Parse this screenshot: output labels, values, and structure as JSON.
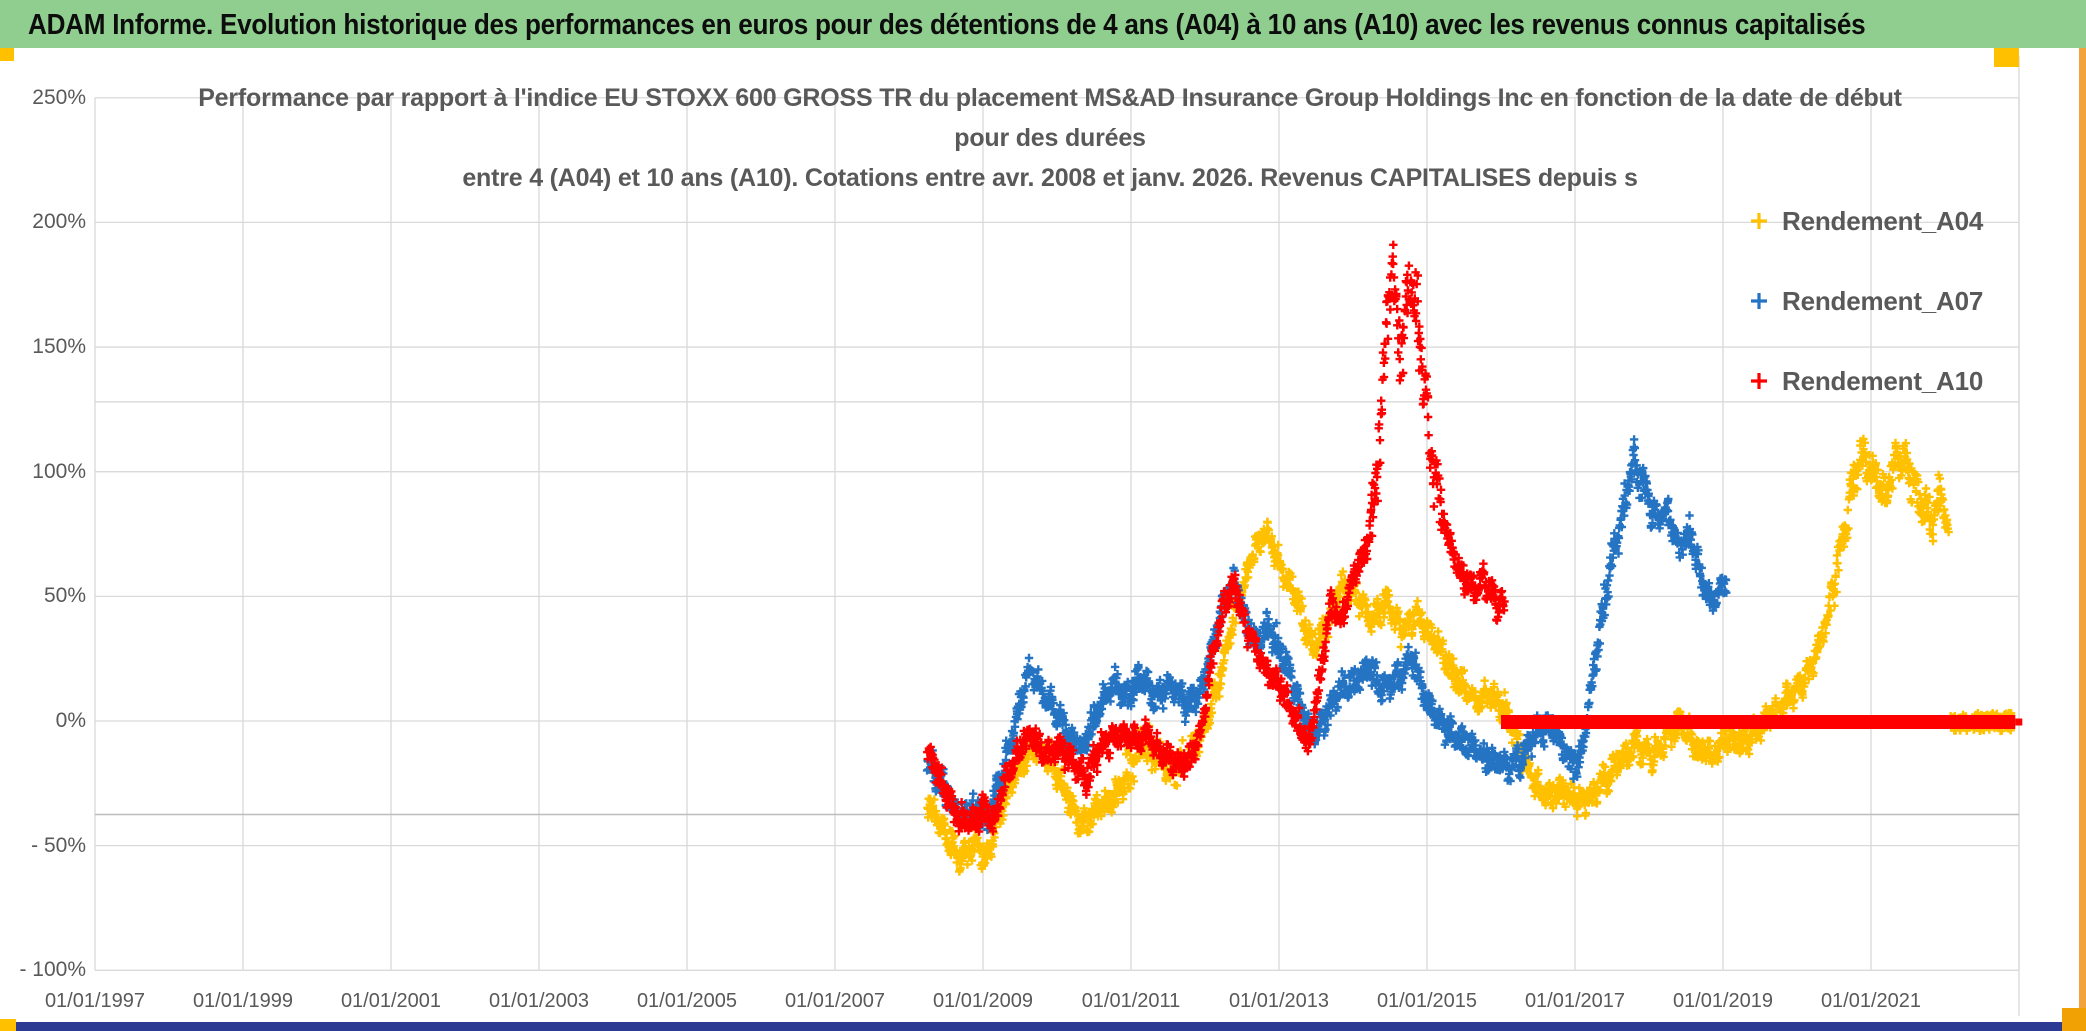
{
  "header": {
    "title": "ADAM Informe. Evolution historique des performances en euros pour des détentions de 4 ans (A04) à 10 ans (A10) avec les revenus connus capitalisés",
    "bg_color": "#8FCE8F",
    "text_color": "#0D0D0D"
  },
  "legend": {
    "position": "top-right",
    "items": [
      {
        "label": "Rendement_A04",
        "color": "#FFC000",
        "marker": "plus"
      },
      {
        "label": "Rendement_A07",
        "color": "#2574C4",
        "marker": "plus"
      },
      {
        "label": "Rendement_A10",
        "color": "#FF0000",
        "marker": "plus"
      }
    ]
  },
  "chart_data": {
    "type": "scatter",
    "title_lines": [
      "Performance par rapport à l'indice EU STOXX 600 GROSS TR  du placement MS&AD Insurance Group Holdings Inc en fonction de la date de début",
      "pour des durées",
      "entre 4 (A04) et 10 ans (A10). Cotations entre avr. 2008 et janv. 2026. Revenus CAPITALISES depuis s"
    ],
    "grid": true,
    "gridline_color": "#D9D9D9",
    "x_range_years": [
      1997,
      2023
    ],
    "ylim_pct": [
      -100,
      250
    ],
    "y_ticks": [
      "250%",
      "200%",
      "150%",
      "100%",
      "50%",
      "0%",
      "- 50%",
      "- 100%"
    ],
    "y_tick_values": [
      250,
      200,
      150,
      100,
      50,
      0,
      -50,
      -100
    ],
    "x_ticks": [
      "01/01/1997",
      "01/01/1999",
      "01/01/2001",
      "01/01/2003",
      "01/01/2005",
      "01/01/2007",
      "01/01/2009",
      "01/01/2011",
      "01/01/2013",
      "01/01/2015",
      "01/01/2017",
      "01/01/2019",
      "01/01/2021"
    ],
    "x_tick_years": [
      1997,
      1999,
      2001,
      2003,
      2005,
      2007,
      2009,
      2011,
      2013,
      2015,
      2017,
      2019,
      2021
    ],
    "extra_rules_pct": {
      "upper": 128,
      "lower": -37.5
    },
    "zero_flat_line": {
      "series": "Rendement_A10",
      "value_pct": 0,
      "from_year": 2016.0,
      "to_year": 2022.95,
      "color": "#FF0000",
      "thickness_px": 14
    },
    "series": [
      {
        "name": "Rendement_A04",
        "color": "#FFC000",
        "marker": "plus",
        "start_year": 2008.25,
        "end_year": 2022.05,
        "flat_zero": {
          "from": 2022.07,
          "to": 2022.9
        },
        "spread_base": 6,
        "spread_zones": [
          [
            2010.9,
            2011.7,
            9
          ],
          [
            2020.5,
            2021.95,
            9
          ]
        ],
        "clamp": [
          -61,
          121
        ],
        "points": [
          [
            2008.25,
            -32
          ],
          [
            2008.5,
            -45
          ],
          [
            2008.7,
            -55
          ],
          [
            2008.9,
            -50
          ],
          [
            2009.05,
            -55
          ],
          [
            2009.25,
            -35
          ],
          [
            2009.5,
            -18
          ],
          [
            2009.7,
            -10
          ],
          [
            2009.9,
            -14
          ],
          [
            2010.1,
            -28
          ],
          [
            2010.35,
            -42
          ],
          [
            2010.55,
            -35
          ],
          [
            2010.75,
            -32
          ],
          [
            2010.95,
            -22
          ],
          [
            2011.15,
            -8
          ],
          [
            2011.35,
            -15
          ],
          [
            2011.55,
            -20
          ],
          [
            2011.75,
            -15
          ],
          [
            2011.95,
            -5
          ],
          [
            2012.15,
            12
          ],
          [
            2012.4,
            42
          ],
          [
            2012.65,
            68
          ],
          [
            2012.85,
            75
          ],
          [
            2013.05,
            60
          ],
          [
            2013.25,
            48
          ],
          [
            2013.45,
            30
          ],
          [
            2013.65,
            40
          ],
          [
            2013.85,
            55
          ],
          [
            2014.05,
            50
          ],
          [
            2014.25,
            40
          ],
          [
            2014.45,
            48
          ],
          [
            2014.65,
            35
          ],
          [
            2014.85,
            42
          ],
          [
            2015.05,
            35
          ],
          [
            2015.25,
            25
          ],
          [
            2015.45,
            15
          ],
          [
            2015.65,
            8
          ],
          [
            2015.85,
            12
          ],
          [
            2016.05,
            5
          ],
          [
            2016.25,
            -10
          ],
          [
            2016.45,
            -25
          ],
          [
            2016.65,
            -30
          ],
          [
            2016.85,
            -28
          ],
          [
            2017.05,
            -32
          ],
          [
            2017.25,
            -30
          ],
          [
            2017.45,
            -22
          ],
          [
            2017.65,
            -14
          ],
          [
            2017.85,
            -10
          ],
          [
            2018.05,
            -14
          ],
          [
            2018.25,
            -6
          ],
          [
            2018.45,
            0
          ],
          [
            2018.65,
            -12
          ],
          [
            2018.85,
            -14
          ],
          [
            2019.05,
            -6
          ],
          [
            2019.25,
            -9
          ],
          [
            2019.45,
            -4
          ],
          [
            2019.65,
            2
          ],
          [
            2019.85,
            8
          ],
          [
            2020.05,
            14
          ],
          [
            2020.25,
            26
          ],
          [
            2020.45,
            48
          ],
          [
            2020.6,
            70
          ],
          [
            2020.75,
            95
          ],
          [
            2020.9,
            108
          ],
          [
            2021.05,
            100
          ],
          [
            2021.2,
            88
          ],
          [
            2021.35,
            108
          ],
          [
            2021.5,
            100
          ],
          [
            2021.65,
            90
          ],
          [
            2021.8,
            80
          ],
          [
            2021.95,
            90
          ],
          [
            2022.05,
            75
          ]
        ]
      },
      {
        "name": "Rendement_A07",
        "color": "#2574C4",
        "marker": "plus",
        "start_year": 2008.25,
        "end_year": 2019.05,
        "flat_zero": null,
        "spread_base": 6,
        "spread_zones": [
          [
            2017.3,
            2018.1,
            8
          ]
        ],
        "clamp": [
          -52,
          116
        ],
        "points": [
          [
            2008.25,
            -15
          ],
          [
            2008.5,
            -28
          ],
          [
            2008.7,
            -40
          ],
          [
            2008.9,
            -36
          ],
          [
            2009.05,
            -40
          ],
          [
            2009.25,
            -22
          ],
          [
            2009.45,
            0
          ],
          [
            2009.6,
            20
          ],
          [
            2009.8,
            12
          ],
          [
            2010.0,
            3
          ],
          [
            2010.2,
            -8
          ],
          [
            2010.35,
            -12
          ],
          [
            2010.55,
            5
          ],
          [
            2010.75,
            15
          ],
          [
            2010.95,
            10
          ],
          [
            2011.15,
            18
          ],
          [
            2011.35,
            8
          ],
          [
            2011.55,
            15
          ],
          [
            2011.75,
            6
          ],
          [
            2011.95,
            12
          ],
          [
            2012.1,
            30
          ],
          [
            2012.25,
            48
          ],
          [
            2012.4,
            55
          ],
          [
            2012.55,
            40
          ],
          [
            2012.7,
            30
          ],
          [
            2012.85,
            38
          ],
          [
            2013.0,
            30
          ],
          [
            2013.15,
            18
          ],
          [
            2013.3,
            5
          ],
          [
            2013.45,
            -5
          ],
          [
            2013.6,
            0
          ],
          [
            2013.8,
            12
          ],
          [
            2014.0,
            15
          ],
          [
            2014.2,
            22
          ],
          [
            2014.4,
            12
          ],
          [
            2014.6,
            18
          ],
          [
            2014.8,
            26
          ],
          [
            2015.0,
            8
          ],
          [
            2015.2,
            -2
          ],
          [
            2015.45,
            -8
          ],
          [
            2015.7,
            -12
          ],
          [
            2015.9,
            -16
          ],
          [
            2016.1,
            -18
          ],
          [
            2016.3,
            -14
          ],
          [
            2016.5,
            -4
          ],
          [
            2016.7,
            -2
          ],
          [
            2016.9,
            -14
          ],
          [
            2017.05,
            -18
          ],
          [
            2017.2,
            8
          ],
          [
            2017.35,
            40
          ],
          [
            2017.5,
            65
          ],
          [
            2017.65,
            85
          ],
          [
            2017.8,
            105
          ],
          [
            2017.95,
            92
          ],
          [
            2018.1,
            80
          ],
          [
            2018.25,
            85
          ],
          [
            2018.4,
            70
          ],
          [
            2018.55,
            76
          ],
          [
            2018.7,
            58
          ],
          [
            2018.85,
            46
          ],
          [
            2019.0,
            55
          ],
          [
            2019.05,
            58
          ]
        ]
      },
      {
        "name": "Rendement_A10",
        "color": "#FF0000",
        "marker": "plus",
        "start_year": 2008.25,
        "end_year": 2016.05,
        "flat_zero": {
          "from": 2016.0,
          "to": 2022.95,
          "thick_line": true
        },
        "spread_base": 6,
        "spread_zones": [
          [
            2014.25,
            2015.2,
            16
          ]
        ],
        "clamp": [
          -50,
          191
        ],
        "points": [
          [
            2008.25,
            -12
          ],
          [
            2008.45,
            -25
          ],
          [
            2008.65,
            -38
          ],
          [
            2008.85,
            -42
          ],
          [
            2009.0,
            -36
          ],
          [
            2009.15,
            -40
          ],
          [
            2009.3,
            -25
          ],
          [
            2009.5,
            -10
          ],
          [
            2009.65,
            -6
          ],
          [
            2009.85,
            -14
          ],
          [
            2010.05,
            -10
          ],
          [
            2010.25,
            -18
          ],
          [
            2010.4,
            -22
          ],
          [
            2010.6,
            -10
          ],
          [
            2010.8,
            -5
          ],
          [
            2011.0,
            -8
          ],
          [
            2011.2,
            -5
          ],
          [
            2011.4,
            -12
          ],
          [
            2011.6,
            -18
          ],
          [
            2011.8,
            -15
          ],
          [
            2011.95,
            -5
          ],
          [
            2012.1,
            25
          ],
          [
            2012.25,
            48
          ],
          [
            2012.4,
            55
          ],
          [
            2012.55,
            38
          ],
          [
            2012.7,
            28
          ],
          [
            2012.85,
            20
          ],
          [
            2013.0,
            15
          ],
          [
            2013.2,
            2
          ],
          [
            2013.4,
            -10
          ],
          [
            2013.55,
            15
          ],
          [
            2013.7,
            48
          ],
          [
            2013.85,
            40
          ],
          [
            2014.0,
            58
          ],
          [
            2014.15,
            65
          ],
          [
            2014.3,
            90
          ],
          [
            2014.42,
            140
          ],
          [
            2014.52,
            183
          ],
          [
            2014.64,
            150
          ],
          [
            2014.78,
            178
          ],
          [
            2014.9,
            155
          ],
          [
            2015.0,
            120
          ],
          [
            2015.15,
            92
          ],
          [
            2015.3,
            72
          ],
          [
            2015.45,
            60
          ],
          [
            2015.6,
            52
          ],
          [
            2015.75,
            58
          ],
          [
            2015.9,
            48
          ],
          [
            2016.05,
            45
          ]
        ]
      }
    ]
  },
  "footer": {
    "bar_color": "#2C3A94",
    "left_square_color": "#FFC000",
    "right_square_color": "#F2A104",
    "right_strip_color": "#F2A33C",
    "top_left_square_color": "#FFC000",
    "top_right_square_color": "#FFC000"
  }
}
